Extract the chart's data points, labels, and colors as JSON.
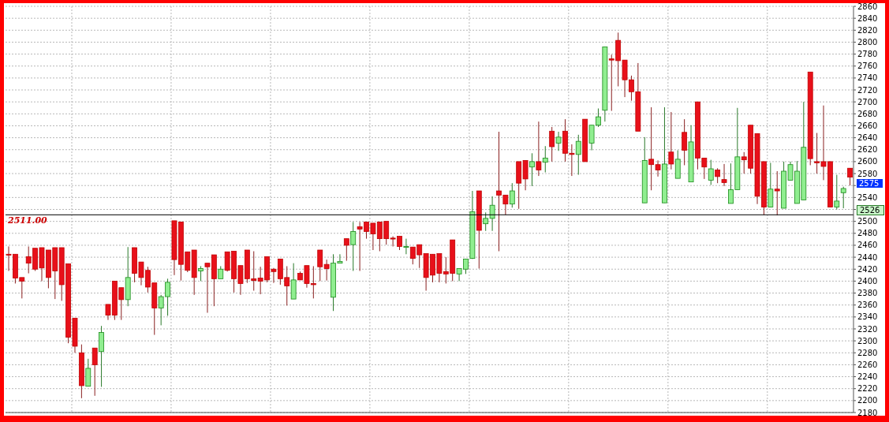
{
  "chart_data": {
    "type": "candlestick",
    "categories": [
      null,
      null,
      null,
      null,
      null,
      null,
      null,
      null,
      null,
      null,
      null,
      null,
      null,
      null,
      null,
      null,
      null,
      null,
      null,
      null,
      null,
      null,
      null,
      null,
      null,
      null,
      null,
      null,
      null,
      null,
      null,
      null,
      null,
      null,
      null,
      null,
      null,
      null,
      null,
      null,
      null,
      null,
      null,
      null,
      null,
      null,
      null,
      null,
      null,
      null,
      null,
      null,
      null,
      null,
      null,
      null,
      null,
      null,
      null,
      null,
      null,
      null,
      null,
      null,
      null,
      null,
      null,
      null,
      null,
      null,
      null,
      null,
      null,
      null,
      null,
      null,
      null,
      null,
      null,
      null,
      null,
      null,
      null,
      null,
      null,
      null,
      null,
      null,
      null,
      null,
      null,
      null,
      null,
      null,
      null,
      null,
      null,
      null,
      null,
      null,
      null,
      null,
      null,
      null,
      null,
      null,
      null,
      null,
      null,
      null,
      null,
      null,
      null,
      null,
      null,
      null,
      null,
      null,
      null,
      null,
      null,
      null,
      null,
      null,
      null,
      null,
      null,
      null
    ],
    "ohlc": [
      [
        2445,
        2458,
        2417,
        2444
      ],
      [
        2445,
        2445,
        2396,
        2405
      ],
      [
        2406,
        2406,
        2371,
        2400
      ],
      [
        2441,
        2458,
        2413,
        2430
      ],
      [
        2455,
        2455,
        2417,
        2420
      ],
      [
        2456,
        2456,
        2400,
        2422
      ],
      [
        2452,
        2452,
        2388,
        2406
      ],
      [
        2456,
        2456,
        2370,
        2417
      ],
      [
        2456,
        2456,
        2367,
        2394
      ],
      [
        2429,
        2429,
        2296,
        2306
      ],
      [
        2338,
        2338,
        2280,
        2291
      ],
      [
        2280,
        2294,
        2204,
        2225
      ],
      [
        2224,
        2270,
        2224,
        2254
      ],
      [
        2288,
        2288,
        2208,
        2260
      ],
      [
        2282,
        2325,
        2223,
        2314
      ],
      [
        2361,
        2361,
        2335,
        2343
      ],
      [
        2400,
        2400,
        2335,
        2343
      ],
      [
        2389,
        2389,
        2335,
        2369
      ],
      [
        2369,
        2457,
        2358,
        2406
      ],
      [
        2456,
        2456,
        2398,
        2413
      ],
      [
        2432,
        2432,
        2393,
        2406
      ],
      [
        2418,
        2424,
        2381,
        2390
      ],
      [
        2397,
        2397,
        2310,
        2355
      ],
      [
        2355,
        2377,
        2326,
        2374
      ],
      [
        2374,
        2404,
        2342,
        2398
      ],
      [
        2501,
        2501,
        2410,
        2436
      ],
      [
        2499,
        2499,
        2401,
        2428
      ],
      [
        2449,
        2449,
        2415,
        2418
      ],
      [
        2452,
        2452,
        2377,
        2406
      ],
      [
        2417,
        2425,
        2400,
        2421
      ],
      [
        2430,
        2430,
        2347,
        2424
      ],
      [
        2444,
        2444,
        2358,
        2404
      ],
      [
        2404,
        2425,
        2404,
        2420
      ],
      [
        2449,
        2449,
        2416,
        2418
      ],
      [
        2450,
        2450,
        2381,
        2404
      ],
      [
        2426,
        2426,
        2377,
        2396
      ],
      [
        2452,
        2452,
        2397,
        2404
      ],
      [
        2404,
        2450,
        2384,
        2401
      ],
      [
        2405,
        2424,
        2378,
        2400
      ],
      [
        2441,
        2441,
        2398,
        2402
      ],
      [
        2420,
        2422,
        2397,
        2416
      ],
      [
        2437,
        2437,
        2394,
        2404
      ],
      [
        2406,
        2425,
        2359,
        2392
      ],
      [
        2370,
        2430,
        2370,
        2402
      ],
      [
        2413,
        2416,
        2402,
        2402
      ],
      [
        2426,
        2426,
        2389,
        2396
      ],
      [
        2396,
        2425,
        2371,
        2394
      ],
      [
        2452,
        2452,
        2400,
        2424
      ],
      [
        2428,
        2436,
        2401,
        2421
      ],
      [
        2373,
        2445,
        2350,
        2430
      ],
      [
        2430,
        2445,
        2430,
        2433
      ],
      [
        2471,
        2471,
        2434,
        2460
      ],
      [
        2461,
        2499,
        2417,
        2483
      ],
      [
        2491,
        2499,
        2417,
        2487
      ],
      [
        2499,
        2499,
        2471,
        2483
      ],
      [
        2497,
        2497,
        2452,
        2479
      ],
      [
        2499,
        2499,
        2450,
        2471
      ],
      [
        2500,
        2500,
        2461,
        2471
      ],
      [
        2472,
        2475,
        2458,
        2471
      ],
      [
        2475,
        2475,
        2452,
        2458
      ],
      [
        2457,
        2471,
        2445,
        2458
      ],
      [
        2457,
        2457,
        2428,
        2438
      ],
      [
        2461,
        2461,
        2422,
        2444
      ],
      [
        2446,
        2446,
        2384,
        2406
      ],
      [
        2445,
        2445,
        2398,
        2410
      ],
      [
        2446,
        2446,
        2398,
        2413
      ],
      [
        2416,
        2440,
        2396,
        2412
      ],
      [
        2469,
        2469,
        2400,
        2413
      ],
      [
        2412,
        2421,
        2400,
        2421
      ],
      [
        2420,
        2437,
        2412,
        2437
      ],
      [
        2438,
        2551,
        2437,
        2516
      ],
      [
        2551,
        2551,
        2421,
        2485
      ],
      [
        2496,
        2515,
        2484,
        2505
      ],
      [
        2505,
        2542,
        2484,
        2527
      ],
      [
        2551,
        2650,
        2450,
        2544
      ],
      [
        2544,
        2544,
        2511,
        2529
      ],
      [
        2529,
        2564,
        2523,
        2551
      ],
      [
        2600,
        2600,
        2521,
        2564
      ],
      [
        2602,
        2602,
        2552,
        2571
      ],
      [
        2591,
        2614,
        2559,
        2600
      ],
      [
        2600,
        2667,
        2576,
        2586
      ],
      [
        2599,
        2626,
        2582,
        2606
      ],
      [
        2651,
        2658,
        2600,
        2625
      ],
      [
        2631,
        2650,
        2618,
        2641
      ],
      [
        2651,
        2671,
        2600,
        2614
      ],
      [
        2614,
        2629,
        2576,
        2612
      ],
      [
        2612,
        2645,
        2578,
        2634
      ],
      [
        2671,
        2671,
        2600,
        2600
      ],
      [
        2631,
        2661,
        2619,
        2661
      ],
      [
        2661,
        2689,
        2658,
        2675
      ],
      [
        2686,
        2792,
        2667,
        2792
      ],
      [
        2772,
        2779,
        2685,
        2770
      ],
      [
        2803,
        2816,
        2726,
        2769
      ],
      [
        2770,
        2770,
        2708,
        2737
      ],
      [
        2737,
        2744,
        2702,
        2717
      ],
      [
        2717,
        2765,
        2651,
        2651
      ],
      [
        2531,
        2641,
        2531,
        2602
      ],
      [
        2604,
        2691,
        2552,
        2595
      ],
      [
        2595,
        2602,
        2575,
        2586
      ],
      [
        2531,
        2691,
        2531,
        2596
      ],
      [
        2616,
        2683,
        2587,
        2596
      ],
      [
        2572,
        2619,
        2572,
        2604
      ],
      [
        2649,
        2671,
        2594,
        2619
      ],
      [
        2566,
        2661,
        2566,
        2633
      ],
      [
        2700,
        2700,
        2587,
        2606
      ],
      [
        2606,
        2606,
        2571,
        2591
      ],
      [
        2569,
        2603,
        2561,
        2588
      ],
      [
        2586,
        2589,
        2564,
        2575
      ],
      [
        2570,
        2596,
        2559,
        2565
      ],
      [
        2530,
        2597,
        2530,
        2553
      ],
      [
        2553,
        2690,
        2553,
        2608
      ],
      [
        2608,
        2616,
        2580,
        2603
      ],
      [
        2661,
        2661,
        2580,
        2589
      ],
      [
        2647,
        2647,
        2529,
        2542
      ],
      [
        2600,
        2600,
        2511,
        2524
      ],
      [
        2524,
        2598,
        2524,
        2554
      ],
      [
        2554,
        2584,
        2510,
        2551
      ],
      [
        2522,
        2600,
        2522,
        2584
      ],
      [
        2569,
        2600,
        2569,
        2595
      ],
      [
        2530,
        2601,
        2530,
        2584
      ],
      [
        2536,
        2700,
        2536,
        2624
      ],
      [
        2750,
        2750,
        2594,
        2605
      ],
      [
        2600,
        2648,
        2580,
        2598
      ],
      [
        2600,
        2694,
        2569,
        2592
      ],
      [
        2600,
        2600,
        2524,
        2524
      ],
      [
        2524,
        2578,
        2520,
        2534
      ],
      [
        2548,
        2558,
        2522,
        2555
      ],
      [
        2589,
        2589,
        2560,
        2574
      ]
    ],
    "ylim": [
      2180,
      2860
    ],
    "yticks": [
      2180,
      2200,
      2220,
      2240,
      2260,
      2280,
      2300,
      2320,
      2340,
      2360,
      2380,
      2400,
      2420,
      2440,
      2460,
      2480,
      2500,
      {
        "value": 2520,
        "label": null
      },
      2540,
      {
        "value": 2560,
        "label": null
      },
      2580,
      2600,
      2620,
      2640,
      2660,
      2680,
      2700,
      2720,
      2740,
      2760,
      2780,
      2800,
      2820,
      2840,
      2860
    ],
    "grid": true,
    "tick_labels": "y",
    "ref_lines": [
      {
        "axis": "y",
        "value": 2511,
        "label": "2511.00",
        "color": "#000000"
      }
    ],
    "annotations": [
      "2575",
      "2526"
    ]
  }
}
